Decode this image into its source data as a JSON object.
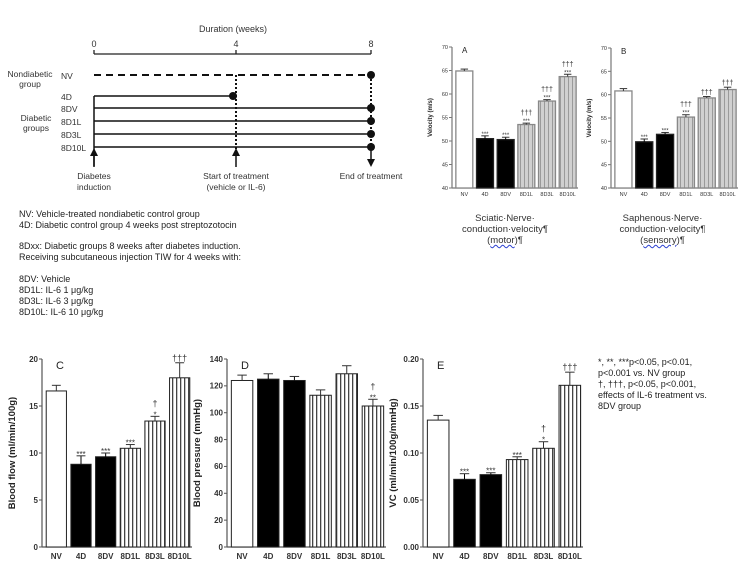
{
  "diagram": {
    "title": "Duration (weeks)",
    "ticks": [
      "0",
      "4",
      "8"
    ],
    "nondiabetic_label": [
      "Nondiabetic",
      "group"
    ],
    "diabetic_label": [
      "Diabetic",
      "groups"
    ],
    "groups": [
      "NV",
      "4D",
      "8DV",
      "8D1L",
      "8D3L",
      "8D10L"
    ],
    "events": [
      {
        "lines": [
          "Diabetes",
          "induction"
        ]
      },
      {
        "lines": [
          "Start of treatment",
          "(vehicle or IL-6)"
        ]
      },
      {
        "lines": [
          "End of treatment"
        ]
      }
    ]
  },
  "legend_text": {
    "block1": [
      "NV: Vehicle-treated nondiabetic control group",
      "4D: Diabetic control group 4 weeks post streptozotocin"
    ],
    "block2": [
      "8Dxx: Diabetic groups 8 weeks after diabetes induction.",
      "Receiving subcutaneous injection TIW for 4 weeks with:"
    ],
    "block3": [
      "8DV: Vehicle",
      "8D1L: IL-6 1 μg/kg",
      "8D3L: IL-6 3 μg/kg",
      "8D10L: IL-6 10 μg/kg"
    ]
  },
  "captions": {
    "a": {
      "l1": "Sciatic·Nerve·",
      "l2": "conduction·velocity¶",
      "l3a": "(",
      "l3b": "motor",
      "l3c": ")¶"
    },
    "b": {
      "l1": "Saphenous·Nerve·",
      "l2": "conduction·velocity¶",
      "l3a": "(",
      "l3b": "sensory",
      "l3c": ")¶"
    }
  },
  "notes": [
    "*, **, ***p<0.05, p<0.01,",
    "p<0.001 vs. NV group",
    "†, †††, p<0.05, p<0.001,",
    "effects of IL-6 treatment vs.",
    "8DV group"
  ],
  "colors": {
    "white_bar": "#ffffff",
    "black_bar": "#000000",
    "gray_bar": "#c8c8c8",
    "axis": "#555555"
  },
  "chart_data": [
    {
      "type": "bar",
      "panel": "A",
      "title": "A",
      "ylabel": "Velocity (m/s)",
      "xlabel": "",
      "categories": [
        "NV",
        "4D",
        "8DV",
        "8D1L",
        "8D3L",
        "8D10L"
      ],
      "values": [
        64.9,
        50.5,
        50.3,
        53.5,
        58.5,
        63.7
      ],
      "errors": [
        0.4,
        0.6,
        0.5,
        0.3,
        0.3,
        0.5
      ],
      "annotations": [
        [
          "",
          ""
        ],
        [
          "***",
          ""
        ],
        [
          "***",
          ""
        ],
        [
          "***",
          "†††"
        ],
        [
          "***",
          "†††"
        ],
        [
          "***",
          "†††"
        ]
      ],
      "fills": [
        "white",
        "black",
        "black",
        "gray",
        "gray",
        "gray"
      ],
      "ylim": [
        40,
        70
      ],
      "yticks": [
        "40",
        "45",
        "50",
        "55",
        "60",
        "65",
        "70"
      ]
    },
    {
      "type": "bar",
      "panel": "B",
      "title": "B",
      "ylabel": "Velocity (m/s)",
      "xlabel": "",
      "categories": [
        "NV",
        "4D",
        "8DV",
        "8D1L",
        "8D3L",
        "8D10L"
      ],
      "values": [
        60.8,
        49.9,
        51.5,
        55.2,
        59.3,
        61.1
      ],
      "errors": [
        0.5,
        0.6,
        0.4,
        0.5,
        0.3,
        0.5
      ],
      "annotations": [
        [
          "",
          ""
        ],
        [
          "***",
          ""
        ],
        [
          "***",
          ""
        ],
        [
          "***",
          "†††"
        ],
        [
          "",
          "†††"
        ],
        [
          "",
          "†††"
        ]
      ],
      "fills": [
        "white",
        "black",
        "black",
        "gray",
        "gray",
        "gray"
      ],
      "ylim": [
        40,
        70
      ],
      "yticks": [
        "40",
        "45",
        "50",
        "55",
        "60",
        "65",
        "70"
      ]
    },
    {
      "type": "bar",
      "panel": "C",
      "title": "C",
      "ylabel": "Blood flow (ml/min/100g)",
      "xlabel": "",
      "categories": [
        "NV",
        "4D",
        "8DV",
        "8D1L",
        "8D3L",
        "8D10L"
      ],
      "values": [
        16.6,
        8.8,
        9.6,
        10.5,
        13.4,
        18.0
      ],
      "errors": [
        0.6,
        0.9,
        0.4,
        0.4,
        0.5,
        1.6
      ],
      "annotations": [
        [
          "",
          ""
        ],
        [
          "***",
          ""
        ],
        [
          "***",
          ""
        ],
        [
          "***",
          ""
        ],
        [
          "*",
          "†"
        ],
        [
          "",
          "†††"
        ]
      ],
      "fills": [
        "white",
        "black",
        "black",
        "stripe",
        "stripe",
        "stripe"
      ],
      "ylim": [
        0,
        20
      ],
      "yticks": [
        "0",
        "5",
        "10",
        "15",
        "20"
      ]
    },
    {
      "type": "bar",
      "panel": "D",
      "title": "D",
      "ylabel": "Blood pressure (mmHg)",
      "xlabel": "",
      "categories": [
        "NV",
        "4D",
        "8DV",
        "8D1L",
        "8D3L",
        "8D10L"
      ],
      "values": [
        124,
        125,
        124,
        113,
        129,
        105
      ],
      "errors": [
        4,
        4,
        3,
        4,
        6,
        5
      ],
      "annotations": [
        [
          "",
          ""
        ],
        [
          "",
          ""
        ],
        [
          "",
          ""
        ],
        [
          "",
          ""
        ],
        [
          "",
          ""
        ],
        [
          "**",
          "†"
        ]
      ],
      "fills": [
        "white",
        "black",
        "black",
        "stripe",
        "stripe",
        "stripe"
      ],
      "ylim": [
        0,
        140
      ],
      "yticks": [
        "0",
        "20",
        "40",
        "60",
        "80",
        "100",
        "120",
        "140"
      ]
    },
    {
      "type": "bar",
      "panel": "E",
      "title": "E",
      "ylabel": "VC (ml/min/100g/mmHg)",
      "xlabel": "",
      "categories": [
        "NV",
        "4D",
        "8DV",
        "8D1L",
        "8D3L",
        "8D10L"
      ],
      "values": [
        0.135,
        0.072,
        0.077,
        0.093,
        0.105,
        0.172
      ],
      "errors": [
        0.005,
        0.006,
        0.002,
        0.003,
        0.007,
        0.014
      ],
      "annotations": [
        [
          "",
          ""
        ],
        [
          "***",
          ""
        ],
        [
          "***",
          ""
        ],
        [
          "***",
          ""
        ],
        [
          "*",
          "†"
        ],
        [
          "",
          "†††"
        ]
      ],
      "fills": [
        "white",
        "black",
        "black",
        "stripe",
        "stripe",
        "stripe"
      ],
      "ylim": [
        0,
        0.2
      ],
      "yticks": [
        "0.00",
        "0.05",
        "0.10",
        "0.15",
        "0.20"
      ]
    }
  ]
}
